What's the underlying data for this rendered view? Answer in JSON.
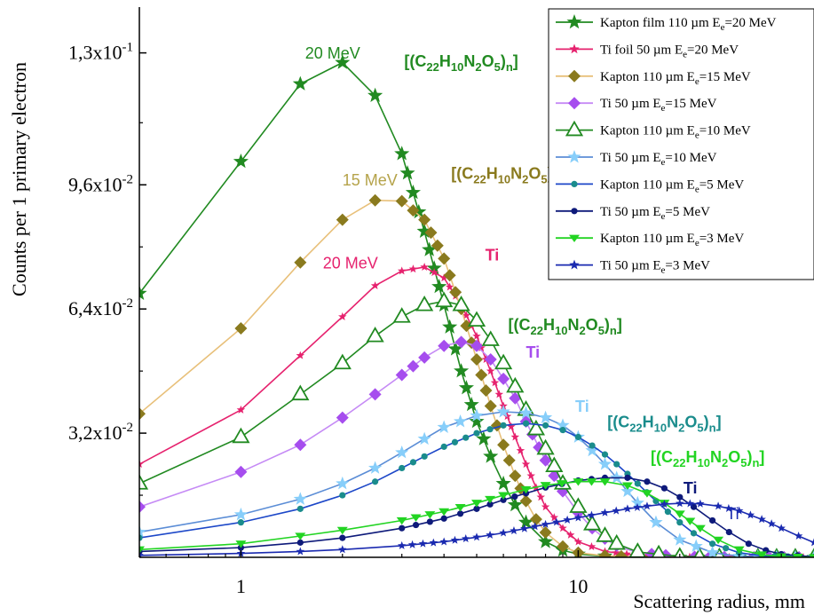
{
  "chart_data": {
    "type": "line",
    "xlabel": "Scattering radius,  mm",
    "ylabel": "Counts per 1 primary electron",
    "xscale": "log",
    "xlim": [
      0.5,
      50
    ],
    "ylim": [
      0,
      0.1418
    ],
    "xticks": [
      {
        "value": 1,
        "label": "1"
      },
      {
        "value": 10,
        "label": "10"
      }
    ],
    "yticks": [
      {
        "value": 0.032,
        "mant": "3,2x10",
        "exp": "-2"
      },
      {
        "value": 0.064,
        "mant": "6,4x10",
        "exp": "-2"
      },
      {
        "value": 0.096,
        "mant": "9,6x10",
        "exp": "-2"
      },
      {
        "value": 0.13,
        "mant": "1,3x10",
        "exp": "-1"
      }
    ],
    "legend_position": "top-right",
    "series": [
      {
        "legend": "Kapton film 110 µm E_e=20 MeV",
        "color": "#218a21",
        "marker": "star",
        "size": 9,
        "points": [
          [
            0.5,
            0.068
          ],
          [
            1,
            0.102
          ],
          [
            1.5,
            0.122
          ],
          [
            2,
            0.1275
          ],
          [
            2.5,
            0.119
          ],
          [
            3,
            0.104
          ],
          [
            3.5,
            0.084
          ],
          [
            4,
            0.065
          ],
          [
            4.5,
            0.048
          ],
          [
            5,
            0.035
          ],
          [
            5.5,
            0.026
          ],
          [
            6,
            0.019
          ],
          [
            6.5,
            0.0135
          ],
          [
            7,
            0.009
          ],
          [
            8,
            0.004
          ],
          [
            9,
            0.0018
          ],
          [
            10,
            0.0008
          ],
          [
            12,
            0.0003
          ],
          [
            15,
            0.0001
          ],
          [
            20,
            0.0
          ],
          [
            30,
            0.0
          ],
          [
            50,
            0.0
          ]
        ]
      },
      {
        "legend": "Ti foil 50 µm  E_e=20 MeV",
        "color": "#e6226e",
        "marker": "star",
        "size": 5,
        "points": [
          [
            0.5,
            0.024
          ],
          [
            1,
            0.038
          ],
          [
            1.5,
            0.052
          ],
          [
            2,
            0.062
          ],
          [
            2.5,
            0.07
          ],
          [
            3,
            0.0738
          ],
          [
            3.5,
            0.0748
          ],
          [
            4,
            0.072
          ],
          [
            4.5,
            0.065
          ],
          [
            5,
            0.057
          ],
          [
            5.5,
            0.048
          ],
          [
            6,
            0.039
          ],
          [
            6.5,
            0.031
          ],
          [
            7,
            0.024
          ],
          [
            7.5,
            0.018
          ],
          [
            8,
            0.013
          ],
          [
            9,
            0.0075
          ],
          [
            10,
            0.004
          ],
          [
            12,
            0.0015
          ],
          [
            15,
            0.0005
          ],
          [
            20,
            0.0001
          ],
          [
            30,
            0.0
          ],
          [
            50,
            0.0
          ]
        ]
      },
      {
        "legend": "Kapton 110 µm E_e=15 MeV",
        "color": "#8a7a1e",
        "line": "#e8c07a",
        "marker": "diamond",
        "size": 7,
        "points": [
          [
            0.5,
            0.037
          ],
          [
            1,
            0.059
          ],
          [
            1.5,
            0.076
          ],
          [
            2,
            0.087
          ],
          [
            2.5,
            0.092
          ],
          [
            3,
            0.0918
          ],
          [
            3.5,
            0.087
          ],
          [
            4,
            0.077
          ],
          [
            4.5,
            0.064
          ],
          [
            5,
            0.051
          ],
          [
            5.5,
            0.039
          ],
          [
            6,
            0.029
          ],
          [
            6.5,
            0.021
          ],
          [
            7,
            0.0145
          ],
          [
            7.5,
            0.0098
          ],
          [
            8,
            0.0064
          ],
          [
            9,
            0.0028
          ],
          [
            10,
            0.0012
          ],
          [
            12,
            0.0004
          ],
          [
            15,
            0.0001
          ],
          [
            20,
            0.0
          ],
          [
            30,
            0.0
          ],
          [
            50,
            0.0
          ]
        ]
      },
      {
        "legend": "Ti 50 µm  E_e=15 MeV",
        "color": "#a64dee",
        "line": "#c58af5",
        "marker": "diamond",
        "size": 7,
        "points": [
          [
            0.5,
            0.013
          ],
          [
            1,
            0.022
          ],
          [
            1.5,
            0.029
          ],
          [
            2,
            0.036
          ],
          [
            2.5,
            0.042
          ],
          [
            3,
            0.047
          ],
          [
            3.5,
            0.0515
          ],
          [
            4,
            0.0545
          ],
          [
            4.5,
            0.0555
          ],
          [
            5,
            0.0545
          ],
          [
            5.5,
            0.051
          ],
          [
            6,
            0.046
          ],
          [
            6.5,
            0.041
          ],
          [
            7,
            0.035
          ],
          [
            8,
            0.025
          ],
          [
            9,
            0.017
          ],
          [
            10,
            0.0115
          ],
          [
            11,
            0.0075
          ],
          [
            12,
            0.0048
          ],
          [
            13,
            0.003
          ],
          [
            15,
            0.0012
          ],
          [
            20,
            0.0002
          ],
          [
            30,
            0.0
          ],
          [
            50,
            0.0
          ]
        ]
      },
      {
        "legend": "Kapton 110 µm E_e=10 MeV",
        "color": "#218a21",
        "marker": "triangle",
        "size": 9,
        "points": [
          [
            0.5,
            0.019
          ],
          [
            1,
            0.031
          ],
          [
            1.5,
            0.042
          ],
          [
            2,
            0.05
          ],
          [
            2.5,
            0.057
          ],
          [
            3,
            0.062
          ],
          [
            3.5,
            0.065
          ],
          [
            4,
            0.066
          ],
          [
            4.5,
            0.065
          ],
          [
            5,
            0.061
          ],
          [
            5.5,
            0.056
          ],
          [
            6,
            0.05
          ],
          [
            6.5,
            0.044
          ],
          [
            7,
            0.038
          ],
          [
            7.5,
            0.033
          ],
          [
            8,
            0.028
          ],
          [
            9,
            0.019
          ],
          [
            10,
            0.013
          ],
          [
            11,
            0.0085
          ],
          [
            12,
            0.0055
          ],
          [
            13,
            0.0035
          ],
          [
            15,
            0.0014
          ],
          [
            20,
            0.0002
          ],
          [
            30,
            0.0
          ],
          [
            50,
            0.0
          ]
        ]
      },
      {
        "legend": "Ti 50 µm  E_e=10 MeV",
        "color": "#87cefa",
        "line": "#5b8dd6",
        "marker": "star",
        "size": 8,
        "points": [
          [
            0.5,
            0.0065
          ],
          [
            1,
            0.011
          ],
          [
            1.5,
            0.015
          ],
          [
            2,
            0.019
          ],
          [
            2.5,
            0.023
          ],
          [
            3,
            0.027
          ],
          [
            3.5,
            0.0305
          ],
          [
            4,
            0.0335
          ],
          [
            5,
            0.0365
          ],
          [
            6,
            0.0375
          ],
          [
            7,
            0.0372
          ],
          [
            8,
            0.036
          ],
          [
            9,
            0.034
          ],
          [
            10,
            0.031
          ],
          [
            11,
            0.0275
          ],
          [
            12,
            0.024
          ],
          [
            13,
            0.0205
          ],
          [
            14,
            0.017
          ],
          [
            15,
            0.014
          ],
          [
            17,
            0.009
          ],
          [
            20,
            0.0045
          ],
          [
            25,
            0.0012
          ],
          [
            30,
            0.0003
          ],
          [
            50,
            0.0
          ]
        ]
      },
      {
        "legend": "Kapton 110 µm E_e=5 MeV",
        "color": "#1a8c8c",
        "line": "#1c47c8",
        "marker": "circle",
        "size": 6,
        "points": [
          [
            0.5,
            0.005
          ],
          [
            1,
            0.009
          ],
          [
            1.5,
            0.0125
          ],
          [
            2,
            0.016
          ],
          [
            2.5,
            0.0195
          ],
          [
            3,
            0.023
          ],
          [
            3.5,
            0.026
          ],
          [
            4,
            0.0285
          ],
          [
            5,
            0.032
          ],
          [
            6,
            0.034
          ],
          [
            7,
            0.0345
          ],
          [
            8,
            0.034
          ],
          [
            9,
            0.0328
          ],
          [
            10,
            0.031
          ],
          [
            11,
            0.0288
          ],
          [
            12,
            0.0265
          ],
          [
            13,
            0.024
          ],
          [
            14,
            0.0215
          ],
          [
            15,
            0.019
          ],
          [
            17,
            0.0145
          ],
          [
            20,
            0.009
          ],
          [
            22,
            0.0062
          ],
          [
            25,
            0.0035
          ],
          [
            30,
            0.0012
          ],
          [
            35,
            0.0004
          ],
          [
            50,
            0.0
          ]
        ]
      },
      {
        "legend": "Ti 50 µm  E_e=5 MeV",
        "color": "#0e1a7a",
        "marker": "circle",
        "size": 6,
        "points": [
          [
            0.5,
            0.0015
          ],
          [
            1,
            0.0025
          ],
          [
            1.5,
            0.0038
          ],
          [
            2,
            0.005
          ],
          [
            3,
            0.0075
          ],
          [
            4,
            0.01
          ],
          [
            5,
            0.0125
          ],
          [
            6,
            0.0148
          ],
          [
            7,
            0.0165
          ],
          [
            8,
            0.018
          ],
          [
            10,
            0.0198
          ],
          [
            12,
            0.0205
          ],
          [
            14,
            0.0205
          ],
          [
            16,
            0.0195
          ],
          [
            18,
            0.0178
          ],
          [
            20,
            0.0155
          ],
          [
            22,
            0.013
          ],
          [
            25,
            0.0095
          ],
          [
            28,
            0.0065
          ],
          [
            32,
            0.0035
          ],
          [
            36,
            0.0018
          ],
          [
            40,
            0.0008
          ],
          [
            50,
            0.0001
          ]
        ]
      },
      {
        "legend": "Kapton 110 µm E_e=3 MeV",
        "color": "#22d422",
        "marker": "tri-down",
        "size": 6,
        "points": [
          [
            0.5,
            0.002
          ],
          [
            1,
            0.0035
          ],
          [
            1.5,
            0.0055
          ],
          [
            2,
            0.007
          ],
          [
            3,
            0.0095
          ],
          [
            4,
            0.0118
          ],
          [
            5,
            0.014
          ],
          [
            6,
            0.016
          ],
          [
            7,
            0.0175
          ],
          [
            8,
            0.0186
          ],
          [
            10,
            0.0195
          ],
          [
            12,
            0.0195
          ],
          [
            14,
            0.0185
          ],
          [
            16,
            0.0165
          ],
          [
            18,
            0.014
          ],
          [
            20,
            0.0112
          ],
          [
            23,
            0.0075
          ],
          [
            26,
            0.0045
          ],
          [
            30,
            0.002
          ],
          [
            35,
            0.0007
          ],
          [
            40,
            0.0002
          ],
          [
            50,
            0.0
          ]
        ]
      },
      {
        "legend": "Ti 50 µm  E_e=3 MeV",
        "color": "#1a2ab0",
        "marker": "star",
        "size": 5,
        "points": [
          [
            0.5,
            0.0005
          ],
          [
            1,
            0.001
          ],
          [
            1.5,
            0.0015
          ],
          [
            2,
            0.002
          ],
          [
            3,
            0.003
          ],
          [
            4,
            0.004
          ],
          [
            5,
            0.0052
          ],
          [
            6,
            0.0063
          ],
          [
            8,
            0.0085
          ],
          [
            10,
            0.0102
          ],
          [
            12,
            0.0115
          ],
          [
            14,
            0.0125
          ],
          [
            16,
            0.0132
          ],
          [
            18,
            0.0137
          ],
          [
            20,
            0.0139
          ],
          [
            23,
            0.0138
          ],
          [
            26,
            0.0132
          ],
          [
            30,
            0.012
          ],
          [
            35,
            0.0098
          ],
          [
            40,
            0.0075
          ],
          [
            45,
            0.0055
          ],
          [
            50,
            0.0038
          ]
        ]
      }
    ],
    "annotations": [
      {
        "kind": "plain",
        "text": "20 MeV",
        "color": "#218a21",
        "x": 1.55,
        "y": 0.1285
      },
      {
        "kind": "formula",
        "color": "#218a21",
        "x": 3.05,
        "y": 0.1265
      },
      {
        "kind": "plain",
        "text": "15 MeV",
        "color": "#b5a34a",
        "x": 2.0,
        "y": 0.0958
      },
      {
        "kind": "formula",
        "color": "#8a7a1e",
        "x": 4.2,
        "y": 0.0975
      },
      {
        "kind": "plain",
        "text": "20 MeV",
        "color": "#e6226e",
        "x": 1.75,
        "y": 0.0745
      },
      {
        "kind": "bold",
        "text": "Ti",
        "color": "#e6226e",
        "x": 5.3,
        "y": 0.0765
      },
      {
        "kind": "formula",
        "color": "#218a21",
        "x": 6.2,
        "y": 0.0585
      },
      {
        "kind": "bold",
        "text": "Ti",
        "color": "#a64dee",
        "x": 7.0,
        "y": 0.0515
      },
      {
        "kind": "bold",
        "text": "Ti",
        "color": "#87cefa",
        "x": 9.8,
        "y": 0.0375
      },
      {
        "kind": "formula",
        "color": "#1a8c8c",
        "x": 12.2,
        "y": 0.0335
      },
      {
        "kind": "formula",
        "color": "#22d422",
        "x": 16.4,
        "y": 0.0245
      },
      {
        "kind": "bold",
        "text": "Ti",
        "color": "#0e1a7a",
        "x": 20.5,
        "y": 0.0165
      },
      {
        "kind": "plain",
        "text": "Ti",
        "color": "#1a2ab0",
        "x": 27.5,
        "y": 0.0098
      }
    ],
    "formula_parts": [
      "[(C",
      "22",
      "H",
      "10",
      "N",
      "2",
      "O",
      "5",
      ")",
      "n",
      "]"
    ]
  }
}
